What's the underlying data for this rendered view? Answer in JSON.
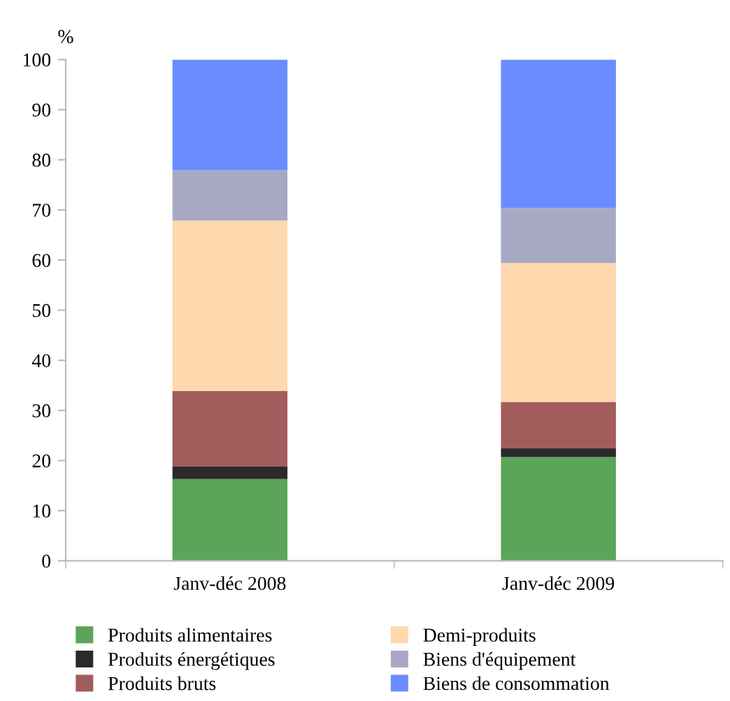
{
  "chart_data": {
    "type": "bar",
    "stacked": true,
    "ylabel": "%",
    "categories": [
      "Janv-déc 2008",
      "Janv-déc 2009"
    ],
    "series": [
      {
        "name": "Produits alimentaires",
        "color": "#5aa55a",
        "values": [
          16.3,
          20.7
        ]
      },
      {
        "name": "Produits énergétiques",
        "color": "#2a2a2a",
        "values": [
          2.5,
          1.7
        ]
      },
      {
        "name": "Produits bruts",
        "color": "#a35c5c",
        "values": [
          15.1,
          9.3
        ]
      },
      {
        "name": "Demi-produits",
        "color": "#ffd8ae",
        "values": [
          34.0,
          27.7
        ]
      },
      {
        "name": "Biens d'équipement",
        "color": "#a7a9c4",
        "values": [
          10.0,
          11.0
        ]
      },
      {
        "name": "Biens de consommation",
        "color": "#6a8cff",
        "values": [
          22.1,
          29.6
        ]
      }
    ],
    "ylim": [
      0,
      100
    ],
    "yticks": [
      0,
      10,
      20,
      30,
      40,
      50,
      60,
      70,
      80,
      90,
      100
    ],
    "grid": false,
    "legend": "bottom"
  }
}
